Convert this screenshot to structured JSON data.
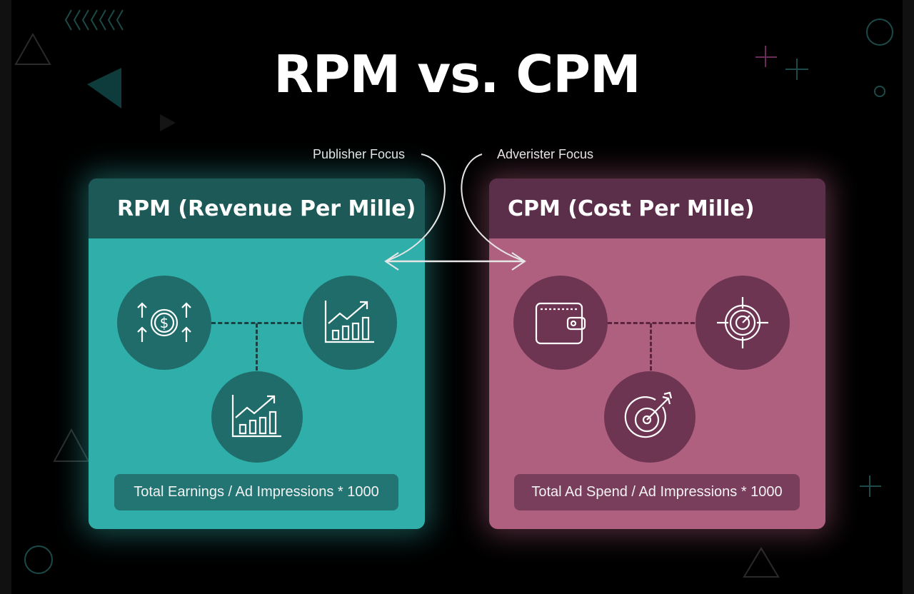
{
  "title": "RPM vs. CPM",
  "labels": {
    "publisher_focus": "Publisher Focus",
    "advertiser_focus": "Adverister Focus"
  },
  "rpm": {
    "heading": "RPM (Revenue Per Mille)",
    "formula": "Total Earnings / Ad Impressions * 1000",
    "icons": [
      "dollar-growth-icon",
      "bar-chart-growth-icon",
      "bar-chart-growth-icon"
    ],
    "color": "#30aeaa"
  },
  "cpm": {
    "heading": "CPM (Cost Per Mille)",
    "formula": "Total Ad Spend / Ad Impressions * 1000",
    "icons": [
      "wallet-icon",
      "crosshair-icon",
      "target-arrow-icon"
    ],
    "color": "#b0607f"
  }
}
